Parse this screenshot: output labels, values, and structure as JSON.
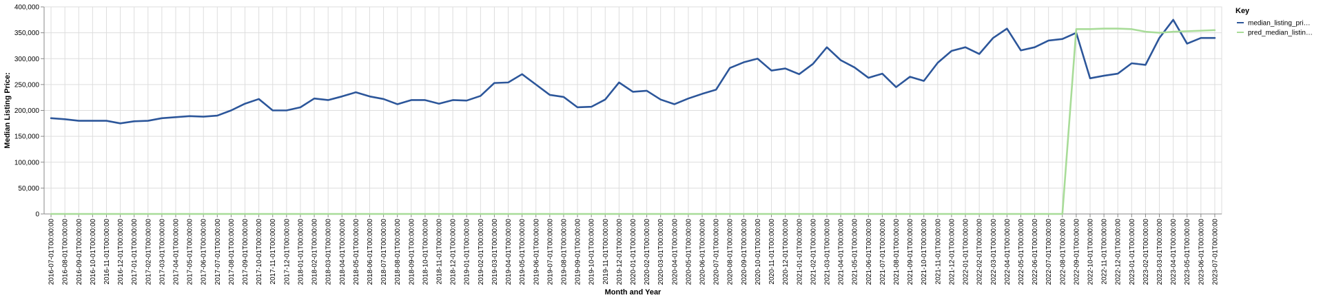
{
  "chart_data": {
    "type": "line",
    "xlabel": "Month and Year",
    "ylabel": "Median Listing Price:",
    "ylim": [
      0,
      400000
    ],
    "y_ticks": [
      "0",
      "50,000",
      "100,000",
      "150,000",
      "200,000",
      "250,000",
      "300,000",
      "350,000",
      "400,000"
    ],
    "y_tick_values": [
      0,
      50000,
      100000,
      150000,
      200000,
      250000,
      300000,
      350000,
      400000
    ],
    "grid": true,
    "legend": {
      "title": "Key",
      "position": "right",
      "labels": [
        "median_listing_pri…",
        "pred_median_listin…"
      ]
    },
    "x": [
      "2016-07-01T00:00:00",
      "2016-08-01T00:00:00",
      "2016-09-01T00:00:00",
      "2016-10-01T00:00:00",
      "2016-11-01T00:00:00",
      "2016-12-01T00:00:00",
      "2017-01-01T00:00:00",
      "2017-02-01T00:00:00",
      "2017-03-01T00:00:00",
      "2017-04-01T00:00:00",
      "2017-05-01T00:00:00",
      "2017-06-01T00:00:00",
      "2017-07-01T00:00:00",
      "2017-08-01T00:00:00",
      "2017-09-01T00:00:00",
      "2017-10-01T00:00:00",
      "2017-11-01T00:00:00",
      "2017-12-01T00:00:00",
      "2018-01-01T00:00:00",
      "2018-02-01T00:00:00",
      "2018-03-01T00:00:00",
      "2018-04-01T00:00:00",
      "2018-05-01T00:00:00",
      "2018-06-01T00:00:00",
      "2018-07-01T00:00:00",
      "2018-08-01T00:00:00",
      "2018-09-01T00:00:00",
      "2018-10-01T00:00:00",
      "2018-11-01T00:00:00",
      "2018-12-01T00:00:00",
      "2019-01-01T00:00:00",
      "2019-02-01T00:00:00",
      "2019-03-01T00:00:00",
      "2019-04-01T00:00:00",
      "2019-05-01T00:00:00",
      "2019-06-01T00:00:00",
      "2019-07-01T00:00:00",
      "2019-08-01T00:00:00",
      "2019-09-01T00:00:00",
      "2019-10-01T00:00:00",
      "2019-11-01T00:00:00",
      "2019-12-01T00:00:00",
      "2020-01-01T00:00:00",
      "2020-02-01T00:00:00",
      "2020-03-01T00:00:00",
      "2020-04-01T00:00:00",
      "2020-05-01T00:00:00",
      "2020-06-01T00:00:00",
      "2020-07-01T00:00:00",
      "2020-08-01T00:00:00",
      "2020-09-01T00:00:00",
      "2020-10-01T00:00:00",
      "2020-11-01T00:00:00",
      "2020-12-01T00:00:00",
      "2021-01-01T00:00:00",
      "2021-02-01T00:00:00",
      "2021-03-01T00:00:00",
      "2021-04-01T00:00:00",
      "2021-05-01T00:00:00",
      "2021-06-01T00:00:00",
      "2021-07-01T00:00:00",
      "2021-08-01T00:00:00",
      "2021-09-01T00:00:00",
      "2021-10-01T00:00:00",
      "2021-11-01T00:00:00",
      "2021-12-01T00:00:00",
      "2022-01-01T00:00:00",
      "2022-02-01T00:00:00",
      "2022-03-01T00:00:00",
      "2022-04-01T00:00:00",
      "2022-05-01T00:00:00",
      "2022-06-01T00:00:00",
      "2022-07-01T00:00:00",
      "2022-08-01T00:00:00",
      "2022-09-01T00:00:00",
      "2022-10-01T00:00:00",
      "2022-11-01T00:00:00",
      "2022-12-01T00:00:00",
      "2023-01-01T00:00:00",
      "2023-02-01T00:00:00",
      "2023-03-01T00:00:00",
      "2023-04-01T00:00:00",
      "2023-05-01T00:00:00",
      "2023-06-01T00:00:00",
      "2023-07-01T00:00:00"
    ],
    "series": [
      {
        "name": "median_listing_pri…",
        "color": "#2c569a",
        "values": [
          185000,
          183000,
          180000,
          180000,
          180000,
          175000,
          179000,
          180000,
          185000,
          187000,
          189000,
          188000,
          190000,
          200000,
          213000,
          222000,
          200000,
          200000,
          206000,
          223000,
          220000,
          227000,
          235000,
          227000,
          222000,
          212000,
          220000,
          220000,
          213000,
          220000,
          219000,
          228000,
          253000,
          254000,
          270000,
          250000,
          230000,
          226000,
          206000,
          207000,
          221000,
          254000,
          236000,
          238000,
          221000,
          212000,
          223000,
          232000,
          240000,
          282000,
          293000,
          300000,
          277000,
          281000,
          270000,
          290000,
          322000,
          297000,
          283000,
          263000,
          271000,
          245000,
          265000,
          257000,
          292000,
          315000,
          322000,
          309000,
          340000,
          358000,
          316000,
          322000,
          335000,
          338000,
          350000,
          262000,
          267000,
          271000,
          291000,
          288000,
          340000,
          375000,
          329000,
          340000,
          340000
        ]
      },
      {
        "name": "pred_median_listin…",
        "color": "#a8dc98",
        "values": [
          0,
          0,
          0,
          0,
          0,
          0,
          0,
          0,
          0,
          0,
          0,
          0,
          0,
          0,
          0,
          0,
          0,
          0,
          0,
          0,
          0,
          0,
          0,
          0,
          0,
          0,
          0,
          0,
          0,
          0,
          0,
          0,
          0,
          0,
          0,
          0,
          0,
          0,
          0,
          0,
          0,
          0,
          0,
          0,
          0,
          0,
          0,
          0,
          0,
          0,
          0,
          0,
          0,
          0,
          0,
          0,
          0,
          0,
          0,
          0,
          0,
          0,
          0,
          0,
          0,
          0,
          0,
          0,
          0,
          0,
          0,
          0,
          0,
          0,
          357000,
          357000,
          358000,
          358000,
          357000,
          352000,
          350000,
          352000,
          353000,
          354000,
          355000
        ]
      }
    ]
  }
}
